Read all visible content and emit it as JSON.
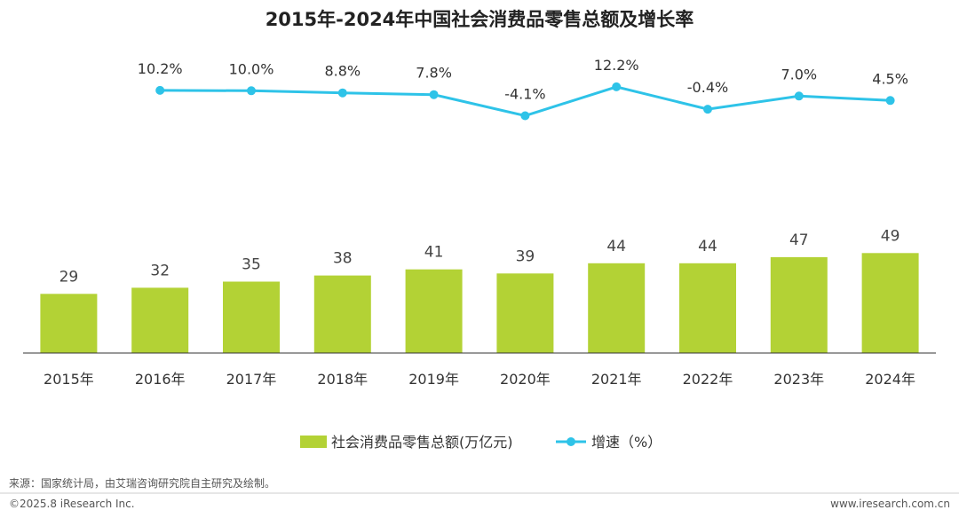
{
  "chart_data": {
    "type": "bar",
    "title": "2015年-2024年中国社会消费品零售总额及增长率",
    "categories": [
      "2015年",
      "2016年",
      "2017年",
      "2018年",
      "2019年",
      "2020年",
      "2021年",
      "2022年",
      "2023年",
      "2024年"
    ],
    "series": [
      {
        "name": "社会消费品零售总额(万亿元)",
        "type": "bar",
        "values": [
          29,
          32,
          35,
          38,
          41,
          39,
          44,
          44,
          47,
          49
        ],
        "labels": [
          "29",
          "32",
          "35",
          "38",
          "41",
          "39",
          "44",
          "44",
          "47",
          "49"
        ],
        "color": "#b3d235"
      },
      {
        "name": "增速（%）",
        "type": "line",
        "values": [
          null,
          10.2,
          10.0,
          8.8,
          7.8,
          -4.1,
          12.2,
          -0.4,
          7.0,
          4.5
        ],
        "labels": [
          "",
          "10.2%",
          "10.0%",
          "8.8%",
          "7.8%",
          "-4.1%",
          "12.2%",
          "-0.4%",
          "7.0%",
          "4.5%"
        ],
        "color": "#2ec3e8"
      }
    ],
    "legend_position": "bottom",
    "grid": false
  },
  "footer": {
    "source": "来源：国家统计局，由艾瑞咨询研究院自主研究及绘制。",
    "copyright": "©2025.8 iResearch Inc.",
    "website": "www.iresearch.com.cn"
  }
}
